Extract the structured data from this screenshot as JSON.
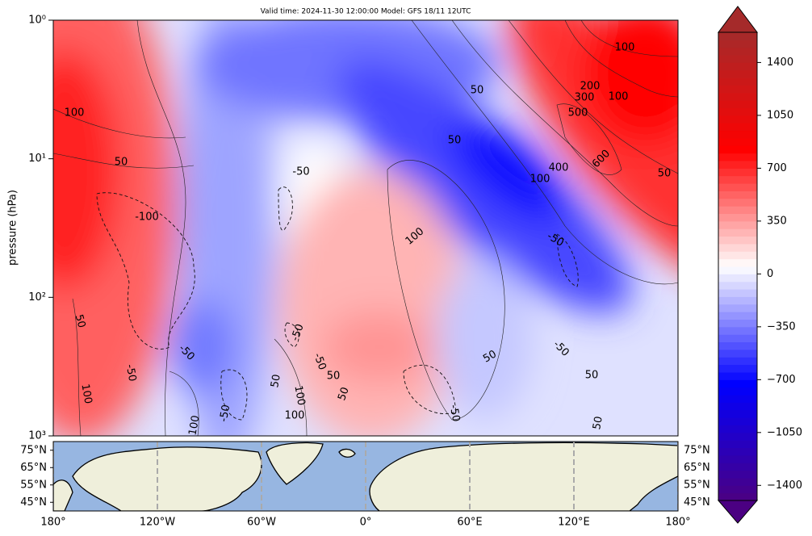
{
  "chart_data": {
    "type": "contour",
    "title": "Valid time: 2024-11-30 12:00:00 Model: GFS 18/11 12UTC",
    "y_label": "pressure (hPa)",
    "y_log": true,
    "ylim": [
      1,
      1000
    ],
    "yticks": [
      {
        "value": 1,
        "label": "10⁰"
      },
      {
        "value": 10,
        "label": "10¹"
      },
      {
        "value": 100,
        "label": "10²"
      },
      {
        "value": 1000,
        "label": "10³"
      }
    ],
    "contour_labels": [
      100,
      50,
      -100,
      -50,
      100,
      50,
      50,
      100,
      400,
      600,
      500,
      300,
      200,
      100,
      100,
      50,
      -50,
      50,
      -50,
      -50,
      100,
      -50,
      -50,
      50,
      50,
      100,
      50,
      100,
      -50,
      100,
      50,
      -50,
      50,
      50,
      -50
    ],
    "colorbar": {
      "clim": [
        -1500,
        1600
      ],
      "extend": "both",
      "colors": [
        "#4b0082",
        "#0000ff",
        "#ffffff",
        "#ff0000",
        "#a52a2a"
      ],
      "ticks": [
        1400,
        1050,
        700,
        350,
        0,
        {
          "value": -350,
          "label": "−350"
        },
        {
          "value": -700,
          "label": "−700"
        },
        {
          "value": -1050,
          "label": "−1050"
        },
        {
          "value": -1400,
          "label": "−1400"
        }
      ]
    },
    "map": {
      "xlim": [
        -180,
        180
      ],
      "ylim": [
        40,
        80
      ],
      "ocean_color": "#97b6e1",
      "land_color": "#efefdb",
      "xticks": [
        {
          "value": -180,
          "label": "180°"
        },
        {
          "value": -120,
          "label": "120°W"
        },
        {
          "value": -60,
          "label": "60°W"
        },
        {
          "value": 0,
          "label": "0°"
        },
        {
          "value": 60,
          "label": "60°E"
        },
        {
          "value": 120,
          "label": "120°E"
        },
        {
          "value": 180,
          "label": "180°"
        }
      ],
      "yticks": [
        {
          "value": 75,
          "label": "75°N"
        },
        {
          "value": 65,
          "label": "65°N"
        },
        {
          "value": 55,
          "label": "55°N"
        },
        {
          "value": 45,
          "label": "45°N"
        }
      ]
    }
  }
}
